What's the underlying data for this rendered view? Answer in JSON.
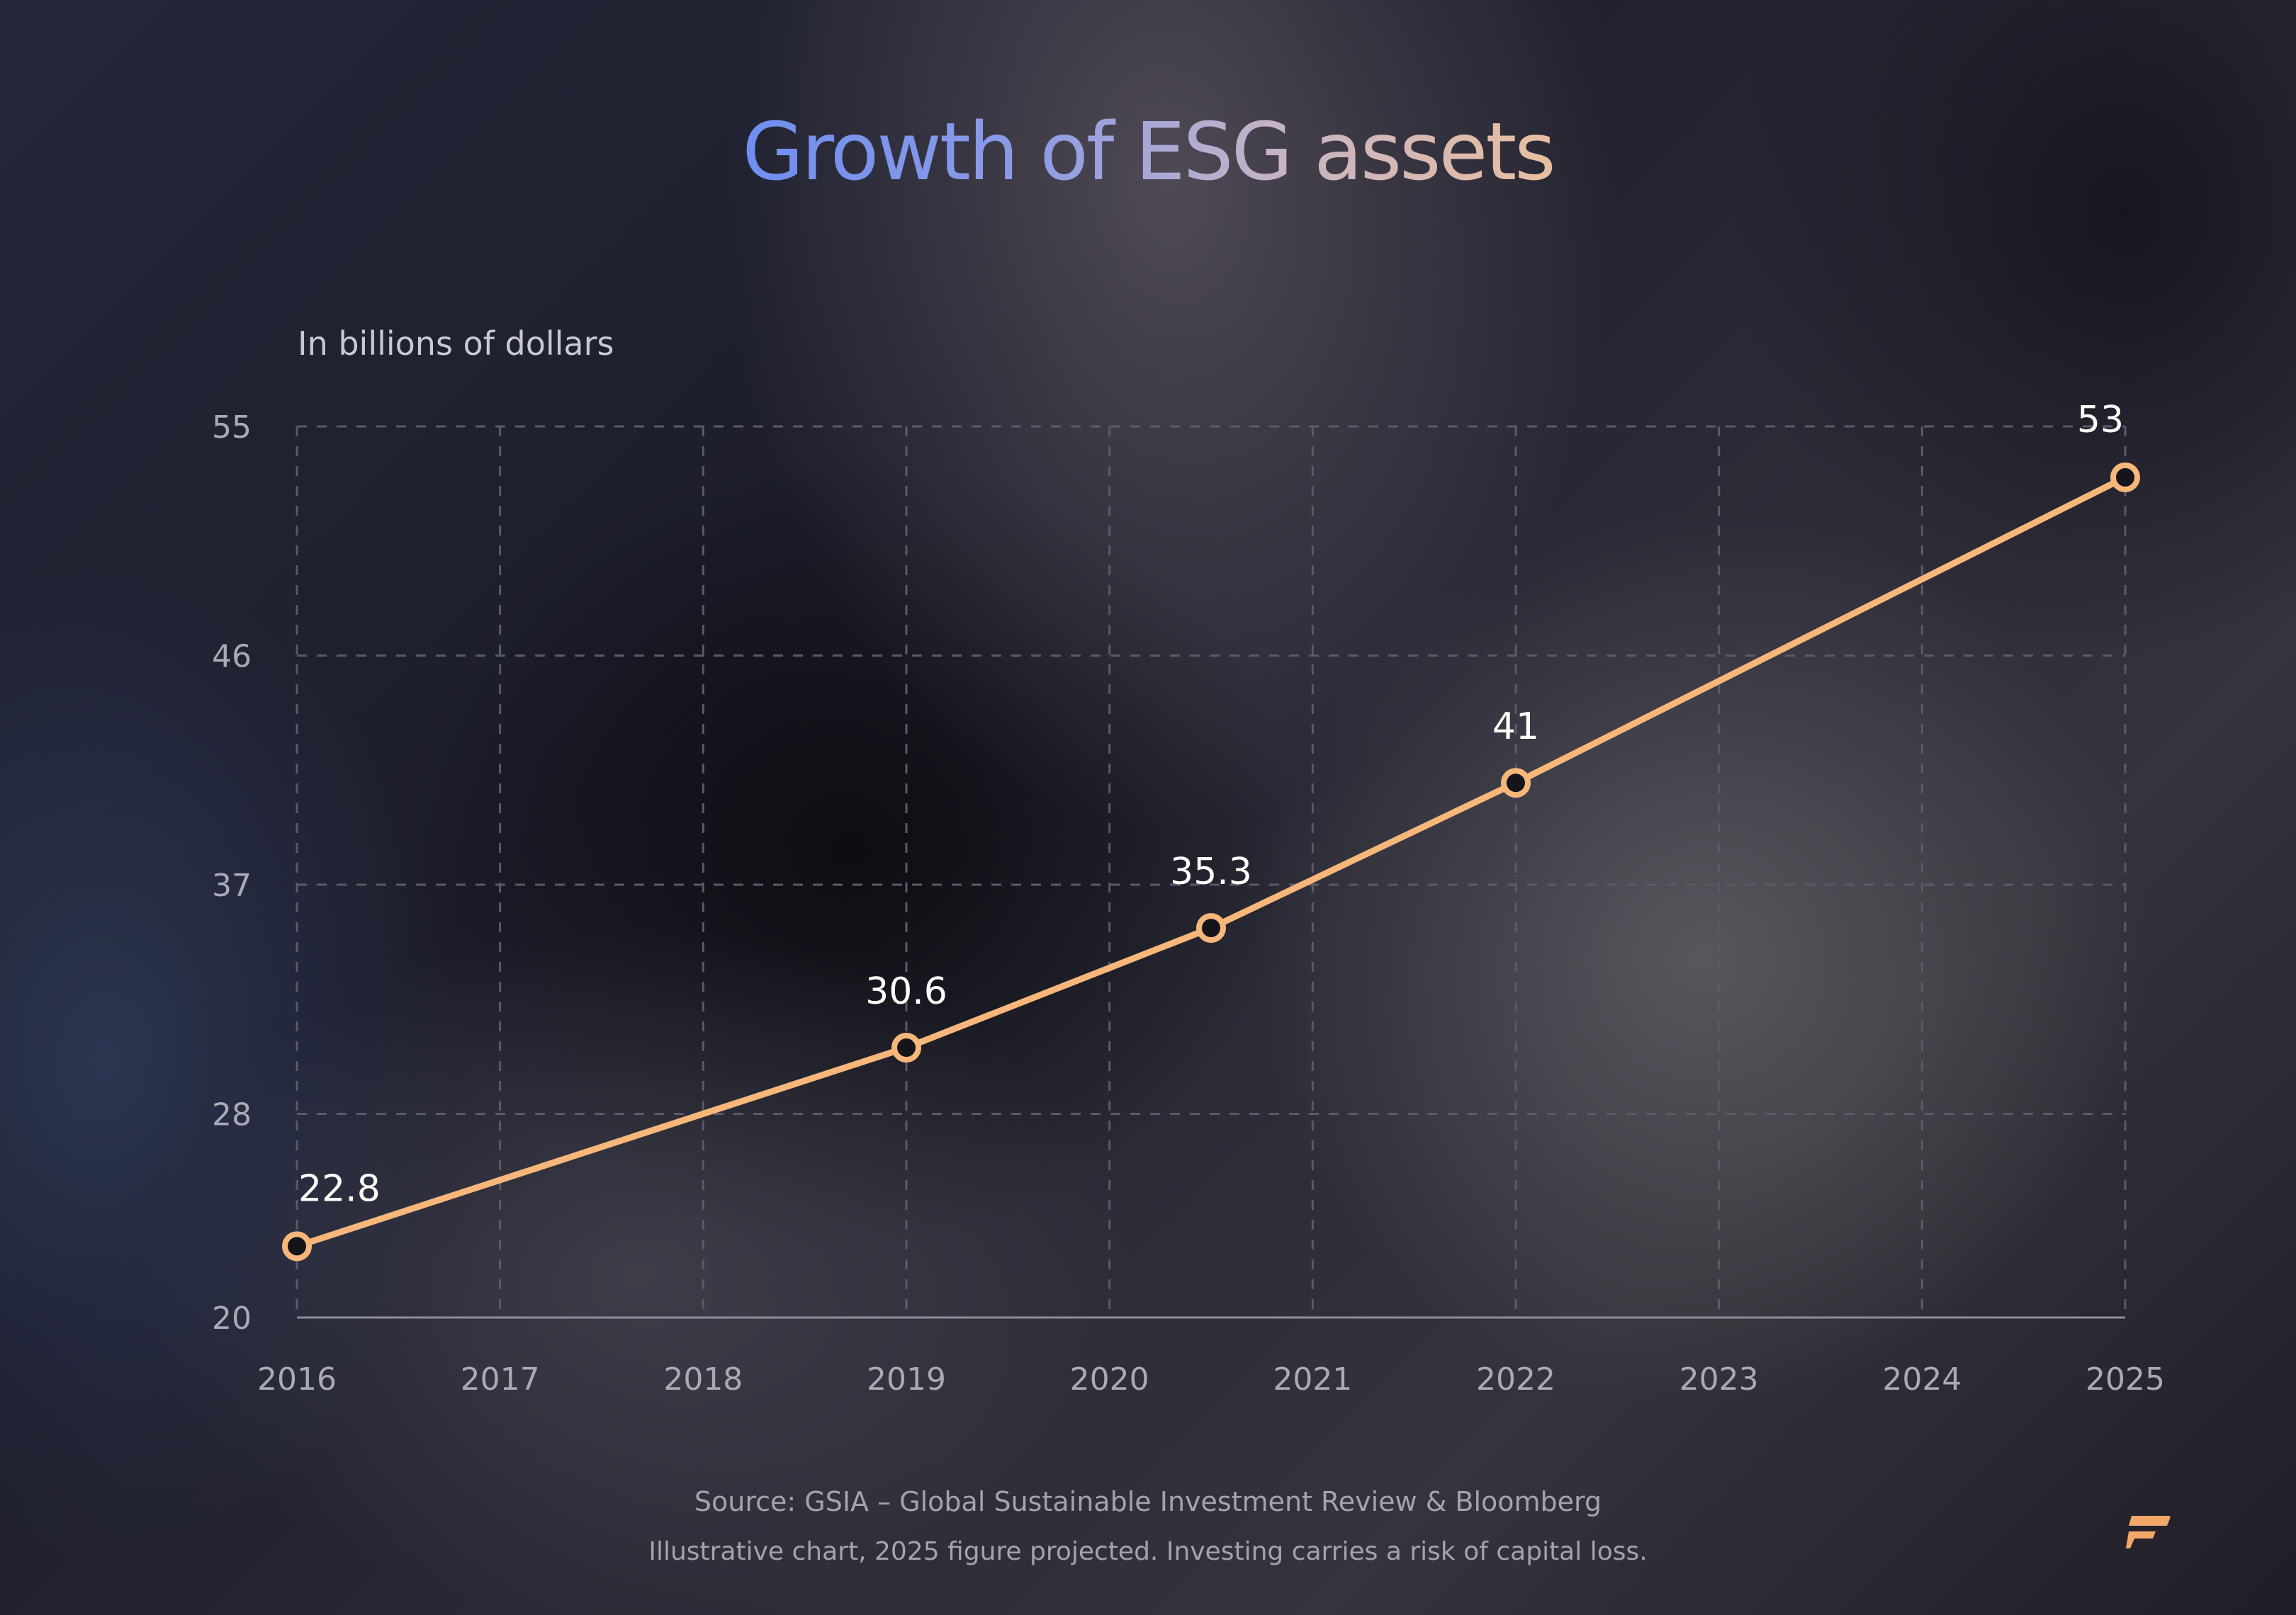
{
  "chart_data": {
    "type": "line",
    "title": "Growth of ESG assets",
    "ylabel": "In billions of dollars",
    "xlabel": "",
    "x_ticks": [
      "2016",
      "2017",
      "2018",
      "2019",
      "2020",
      "2021",
      "2022",
      "2023",
      "2024",
      "2025"
    ],
    "y_ticks": [
      20,
      28,
      37,
      46,
      55
    ],
    "xlim": [
      2016,
      2025
    ],
    "ylim": [
      20,
      55
    ],
    "grid": true,
    "series": [
      {
        "points": [
          {
            "x": 2016,
            "y": 22.8,
            "label": "22.8"
          },
          {
            "x": 2019,
            "y": 30.6,
            "label": "30.6"
          },
          {
            "x": 2020.5,
            "y": 35.3,
            "label": "35.3"
          },
          {
            "x": 2022,
            "y": 41,
            "label": "41"
          },
          {
            "x": 2025,
            "y": 53,
            "label": "53"
          }
        ]
      }
    ]
  },
  "colors": {
    "line": "#f7b77a",
    "marker_fill": "#15141b",
    "grid": "#5a5b66",
    "axis": "#8d8e99"
  },
  "footer": {
    "source": "Source: GSIA – Global Sustainable Investment Review & Bloomberg",
    "note": "Illustrative chart, 2025 figure projected. Investing carries a risk of capital loss."
  },
  "logo_icon": "brand-logo-icon"
}
